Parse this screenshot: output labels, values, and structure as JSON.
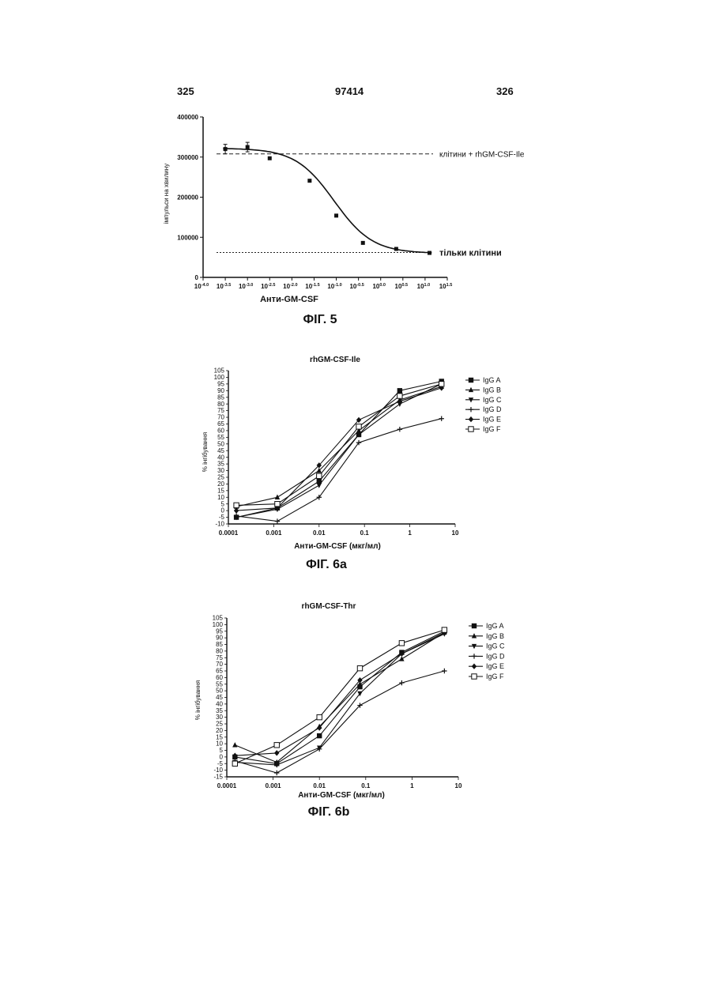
{
  "header": {
    "left_page": "325",
    "center_number": "97414",
    "right_page": "326"
  },
  "chart_data": [
    {
      "type": "line",
      "caption": "ФІГ. 5",
      "xlabel": "Анти-GM-CSF",
      "ylabel": "імпульси на хвилину",
      "x_scale": "log",
      "xlim": [
        -4.0,
        1.5
      ],
      "ylim": [
        0,
        400000
      ],
      "yticks": [
        0,
        100000,
        200000,
        300000,
        400000
      ],
      "yticklabels": [
        "0",
        "100000",
        "200000",
        "300000",
        "400000"
      ],
      "xticks": [
        -4.0,
        -3.5,
        -3.0,
        -2.5,
        -2.0,
        -1.5,
        -1.0,
        -0.5,
        0.0,
        0.5,
        1.0,
        1.5
      ],
      "xtick_exponents": [
        "-4.0",
        "-3.5",
        "-3.0",
        "-2.5",
        "-2.0",
        "-1.5",
        "-1.0",
        "-0.5",
        "0.0",
        "0.5",
        "1.0",
        "1.5"
      ],
      "xtick_base": "10",
      "points": [
        {
          "x": -3.5,
          "y": 320000
        },
        {
          "x": -3.0,
          "y": 325000
        },
        {
          "x": -2.5,
          "y": 297000
        },
        {
          "x": -1.6,
          "y": 241000
        },
        {
          "x": -1.0,
          "y": 154000
        },
        {
          "x": -0.4,
          "y": 86000
        },
        {
          "x": 0.35,
          "y": 71000
        },
        {
          "x": 1.1,
          "y": 61000
        }
      ],
      "fit": {
        "top": 322000,
        "bottom": 60000,
        "ec50_log": -1.05,
        "hill": 1.0
      },
      "reference_lines": [
        {
          "y": 308000,
          "label": "клітини + rhGM-CSF-Ile",
          "style": "dashed"
        },
        {
          "y": 62000,
          "label": "тільки клітини",
          "style": "dotted"
        }
      ]
    },
    {
      "type": "line",
      "title": "rhGM-CSF-Ile",
      "caption": "ФІГ. 6a",
      "xlabel": "Анти-GM-CSF (мкг/мл)",
      "ylabel": "% інгібування",
      "x_scale": "log",
      "xlim": [
        0.0001,
        10
      ],
      "ylim": [
        -10,
        105
      ],
      "xticklabels": [
        "0.0001",
        "0.001",
        "0.01",
        "0.1",
        "1",
        "10"
      ],
      "yticks": [
        -10,
        -5,
        0,
        5,
        10,
        15,
        20,
        25,
        30,
        35,
        40,
        45,
        50,
        55,
        60,
        65,
        70,
        75,
        80,
        85,
        90,
        95,
        100,
        105
      ],
      "x": [
        0.00015,
        0.0012,
        0.01,
        0.075,
        0.6,
        5
      ],
      "series": [
        {
          "name": "IgG A",
          "marker": "square",
          "values": [
            -5,
            2,
            22,
            57,
            90,
            97
          ]
        },
        {
          "name": "IgG B",
          "marker": "triangle-up",
          "values": [
            3,
            10,
            30,
            60,
            83,
            93
          ]
        },
        {
          "name": "IgG C",
          "marker": "triangle-down",
          "values": [
            -5,
            1,
            19,
            57,
            80,
            95
          ]
        },
        {
          "name": "IgG D",
          "marker": "cross",
          "values": [
            -4,
            -8,
            10,
            51,
            61,
            69
          ]
        },
        {
          "name": "IgG E",
          "marker": "diamond",
          "values": [
            0,
            2,
            34,
            68,
            82,
            92
          ]
        },
        {
          "name": "IgG F",
          "marker": "square-open",
          "values": [
            4,
            5,
            26,
            63,
            86,
            95
          ]
        }
      ]
    },
    {
      "type": "line",
      "title": "rhGM-CSF-Thr",
      "caption": "ФІГ. 6b",
      "xlabel": "Анти-GM-CSF (мкг/мл)",
      "ylabel": "% інгібування",
      "x_scale": "log",
      "xlim": [
        0.0001,
        10
      ],
      "ylim": [
        -15,
        105
      ],
      "xticklabels": [
        "0.0001",
        "0.001",
        "0.01",
        "0.1",
        "1",
        "10"
      ],
      "yticks": [
        -15,
        -10,
        -5,
        0,
        5,
        10,
        15,
        20,
        25,
        30,
        35,
        40,
        45,
        50,
        55,
        60,
        65,
        70,
        75,
        80,
        85,
        90,
        95,
        100,
        105
      ],
      "x": [
        0.00015,
        0.0012,
        0.01,
        0.075,
        0.6,
        5
      ],
      "series": [
        {
          "name": "IgG A",
          "marker": "square",
          "values": [
            0,
            -5,
            16,
            53,
            79,
            95
          ]
        },
        {
          "name": "IgG B",
          "marker": "triangle-up",
          "values": [
            9,
            -4,
            23,
            55,
            74,
            94
          ]
        },
        {
          "name": "IgG C",
          "marker": "triangle-down",
          "values": [
            -4,
            -6,
            7,
            48,
            78,
            93
          ]
        },
        {
          "name": "IgG D",
          "marker": "cross",
          "values": [
            -3,
            -12,
            6,
            39,
            56,
            65
          ]
        },
        {
          "name": "IgG E",
          "marker": "diamond",
          "values": [
            1,
            3,
            22,
            58,
            78,
            94
          ]
        },
        {
          "name": "IgG F",
          "marker": "square-open",
          "values": [
            -5,
            9,
            30,
            67,
            86,
            96
          ]
        }
      ]
    }
  ]
}
